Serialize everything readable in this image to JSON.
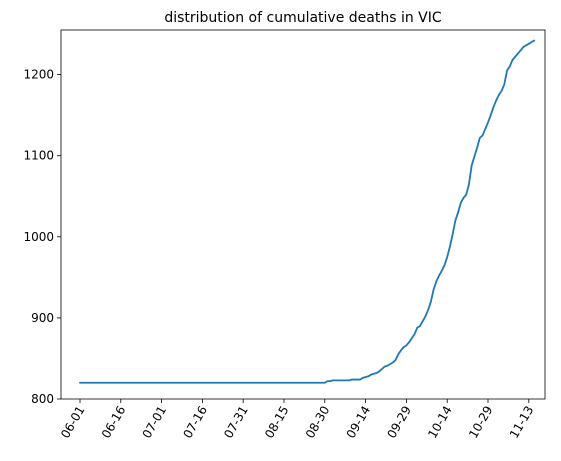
{
  "chart_data": {
    "type": "line",
    "title": "distribution of cumulative deaths in VIC",
    "xlabel": "",
    "ylabel": "",
    "ylim": [
      800,
      1255
    ],
    "yticks": [
      800,
      900,
      1000,
      1100,
      1200
    ],
    "xticks": [
      "06-01",
      "06-16",
      "07-01",
      "07-16",
      "07-31",
      "08-15",
      "08-30",
      "09-14",
      "09-29",
      "10-14",
      "10-29",
      "11-13"
    ],
    "grid": false,
    "color": "#1f77b4",
    "series": [
      {
        "x": [
          "06-01",
          "08-30",
          "08-31",
          "09-01",
          "09-02",
          "09-05",
          "09-06",
          "09-08",
          "09-09",
          "09-10",
          "09-12",
          "09-13",
          "09-15",
          "09-16",
          "09-18",
          "09-19",
          "09-21",
          "09-22",
          "09-24",
          "09-25",
          "09-26",
          "09-27",
          "09-28",
          "09-29",
          "09-30",
          "10-01",
          "10-02",
          "10-03",
          "10-04",
          "10-05",
          "10-06",
          "10-07",
          "10-08",
          "10-09",
          "10-10",
          "10-11",
          "10-12",
          "10-13",
          "10-14",
          "10-15",
          "10-16",
          "10-17",
          "10-18",
          "10-19",
          "10-20",
          "10-21",
          "10-22",
          "10-23",
          "10-24",
          "10-25",
          "10-26",
          "10-27",
          "10-28",
          "10-29",
          "10-30",
          "10-31",
          "11-01",
          "11-02",
          "11-03",
          "11-04",
          "11-05",
          "11-06",
          "11-07",
          "11-08",
          "11-09",
          "11-10",
          "11-11",
          "11-12",
          "11-13",
          "11-14",
          "11-15"
        ],
        "y": [
          820,
          820,
          822,
          822,
          823,
          823,
          823,
          823,
          824,
          824,
          824,
          826,
          828,
          830,
          832,
          834,
          840,
          841,
          845,
          848,
          855,
          860,
          864,
          866,
          870,
          875,
          880,
          888,
          890,
          896,
          902,
          910,
          920,
          935,
          945,
          952,
          958,
          965,
          975,
          988,
          1003,
          1020,
          1030,
          1042,
          1048,
          1052,
          1065,
          1088,
          1099,
          1110,
          1122,
          1125,
          1133,
          1141,
          1150,
          1160,
          1168,
          1175,
          1180,
          1188,
          1205,
          1210,
          1218,
          1222,
          1226,
          1230,
          1234,
          1236,
          1238,
          1240,
          1242
        ]
      }
    ]
  }
}
